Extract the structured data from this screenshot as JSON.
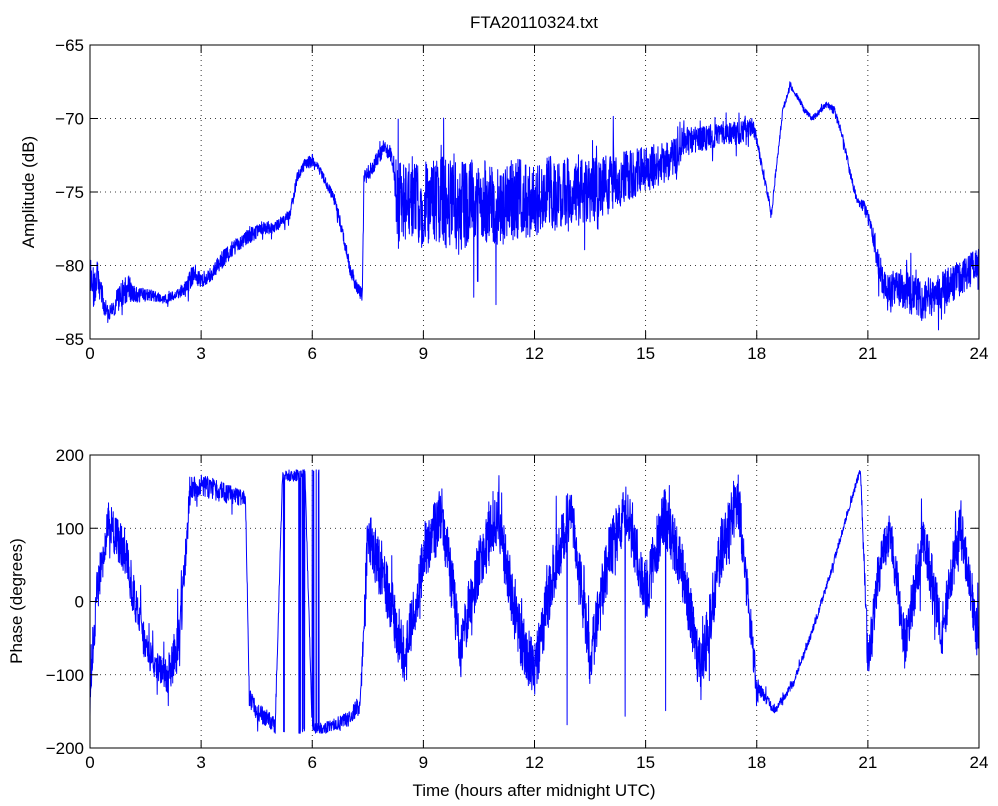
{
  "title": "FTA20110324.txt",
  "chart_data": [
    {
      "type": "line",
      "name": "amplitude",
      "xlabel": "",
      "ylabel": "Amplitude (dB)",
      "xlim": [
        0,
        24
      ],
      "ylim": [
        -85,
        -65
      ],
      "xticks": [
        0,
        3,
        6,
        9,
        12,
        15,
        18,
        21,
        24
      ],
      "yticks": [
        -85,
        -80,
        -75,
        -70,
        -65
      ],
      "grid": true,
      "color": "#0000ff",
      "x": [
        0,
        0.1,
        0.2,
        0.3,
        0.5,
        0.7,
        1.0,
        1.3,
        1.6,
        2.0,
        2.3,
        2.6,
        2.8,
        3.0,
        3.3,
        3.6,
        4.0,
        4.3,
        4.6,
        4.9,
        5.2,
        5.4,
        5.6,
        5.8,
        6.0,
        6.2,
        6.4,
        6.6,
        6.8,
        7.0,
        7.2,
        7.35,
        7.4,
        7.6,
        7.8,
        8.0,
        8.2,
        8.3,
        8.6,
        9.0,
        9.5,
        10.0,
        10.5,
        11.0,
        11.5,
        12.0,
        12.5,
        13.0,
        13.5,
        14.0,
        14.5,
        15.0,
        15.5,
        15.9,
        16.0,
        16.5,
        17.0,
        17.5,
        17.9,
        18.0,
        18.2,
        18.4,
        18.5,
        18.7,
        18.9,
        19.1,
        19.3,
        19.5,
        19.7,
        19.9,
        20.1,
        20.3,
        20.5,
        20.7,
        20.9,
        21.1,
        21.3,
        21.5,
        21.7,
        21.9,
        22.2,
        22.5,
        22.8,
        23.1,
        23.4,
        23.7,
        24.0
      ],
      "y": [
        -80,
        -81.5,
        -80.5,
        -82,
        -83.5,
        -82.5,
        -81.5,
        -82,
        -82,
        -82.3,
        -82,
        -81.5,
        -80.5,
        -81,
        -80.5,
        -79.5,
        -78.5,
        -78,
        -77.5,
        -77.5,
        -77,
        -76.5,
        -74,
        -73,
        -73,
        -73.5,
        -74.5,
        -75.5,
        -77.5,
        -80,
        -81.5,
        -82,
        -74,
        -73.5,
        -72.5,
        -72,
        -73,
        -76,
        -75.5,
        -76,
        -75.5,
        -76,
        -75.5,
        -76,
        -75.5,
        -75.5,
        -75,
        -75,
        -75,
        -74.5,
        -74,
        -73.5,
        -73,
        -72.5,
        -71.5,
        -71.5,
        -71,
        -71,
        -70.5,
        -71.5,
        -74,
        -76.5,
        -74,
        -69.5,
        -67.8,
        -68.5,
        -69.5,
        -70,
        -69.5,
        -69,
        -69.5,
        -71,
        -73.5,
        -75.5,
        -76,
        -77.5,
        -80,
        -82,
        -81.5,
        -81.5,
        -82,
        -82.5,
        -82,
        -81.5,
        -81,
        -80.5,
        -79.5
      ],
      "noise": [
        0.5,
        1.5,
        1.2,
        1.0,
        0.5,
        0.8,
        1.0,
        0.5,
        0.4,
        0.3,
        0.3,
        0.5,
        0.8,
        0.5,
        0.5,
        0.6,
        0.5,
        0.5,
        0.5,
        0.4,
        0.4,
        0.4,
        0.4,
        0.3,
        0.6,
        0.3,
        0.3,
        0.4,
        0.4,
        0.5,
        0.5,
        0.4,
        0.5,
        0.6,
        0.5,
        0.5,
        0.8,
        3.0,
        2.5,
        3.0,
        3.0,
        3.0,
        2.8,
        2.8,
        2.8,
        2.5,
        2.5,
        2.3,
        2.3,
        2.0,
        1.8,
        1.6,
        1.4,
        1.2,
        1.0,
        0.9,
        0.8,
        0.8,
        0.6,
        0.4,
        0.3,
        0.3,
        0.3,
        0.2,
        0.2,
        0.2,
        0.2,
        0.2,
        0.2,
        0.2,
        0.3,
        0.3,
        0.3,
        0.3,
        0.4,
        0.5,
        1.0,
        1.2,
        1.3,
        1.3,
        1.4,
        1.4,
        1.3,
        1.3,
        1.2,
        1.2,
        1.0
      ]
    },
    {
      "type": "line",
      "name": "phase",
      "xlabel": "Time (hours after midnight UTC)",
      "ylabel": "Phase (degrees)",
      "xlim": [
        0,
        24
      ],
      "ylim": [
        -200,
        200
      ],
      "xticks": [
        0,
        3,
        6,
        9,
        12,
        15,
        18,
        21,
        24
      ],
      "yticks": [
        -200,
        -100,
        0,
        100,
        200
      ],
      "grid": true,
      "color": "#0000ff",
      "wrap": [
        -180,
        180
      ],
      "x": [
        0,
        0.2,
        0.5,
        0.7,
        1.0,
        1.2,
        1.5,
        1.8,
        2.1,
        2.4,
        2.7,
        3.0,
        3.5,
        4.2,
        4.3,
        4.5,
        4.8,
        5.0,
        5.2,
        5.5,
        5.8,
        6.0,
        6.5,
        7.0,
        7.3,
        7.5,
        8.0,
        8.5,
        9.0,
        9.5,
        10.0,
        10.5,
        11.0,
        11.5,
        12.0,
        12.5,
        13.0,
        13.5,
        14.0,
        14.5,
        15.0,
        15.5,
        16.0,
        16.5,
        17.0,
        17.5,
        18.0,
        18.2,
        18.5,
        19.0,
        19.5,
        20.0,
        20.5,
        20.8,
        21.0,
        21.3,
        21.6,
        22.0,
        22.5,
        23.0,
        23.5,
        24.0
      ],
      "y": [
        -120,
        20,
        110,
        90,
        60,
        0,
        -60,
        -90,
        -100,
        -60,
        150,
        160,
        150,
        140,
        -130,
        -150,
        -160,
        -170,
        175,
        170,
        180,
        -175,
        -170,
        -160,
        -140,
        90,
        20,
        -80,
        60,
        120,
        -60,
        50,
        120,
        -30,
        -100,
        40,
        130,
        -80,
        60,
        130,
        10,
        120,
        40,
        -100,
        60,
        140,
        -120,
        -130,
        -150,
        -110,
        -40,
        40,
        130,
        180,
        -80,
        40,
        100,
        -60,
        90,
        -40,
        110,
        -60
      ],
      "noise": [
        25,
        30,
        25,
        30,
        30,
        30,
        25,
        20,
        25,
        40,
        20,
        15,
        15,
        10,
        12,
        12,
        12,
        10,
        8,
        8,
        8,
        8,
        8,
        10,
        15,
        40,
        40,
        40,
        40,
        40,
        40,
        40,
        40,
        40,
        40,
        40,
        40,
        40,
        40,
        40,
        40,
        40,
        40,
        40,
        40,
        40,
        20,
        8,
        5,
        5,
        5,
        5,
        5,
        5,
        30,
        30,
        30,
        35,
        35,
        35,
        35,
        35
      ]
    }
  ]
}
